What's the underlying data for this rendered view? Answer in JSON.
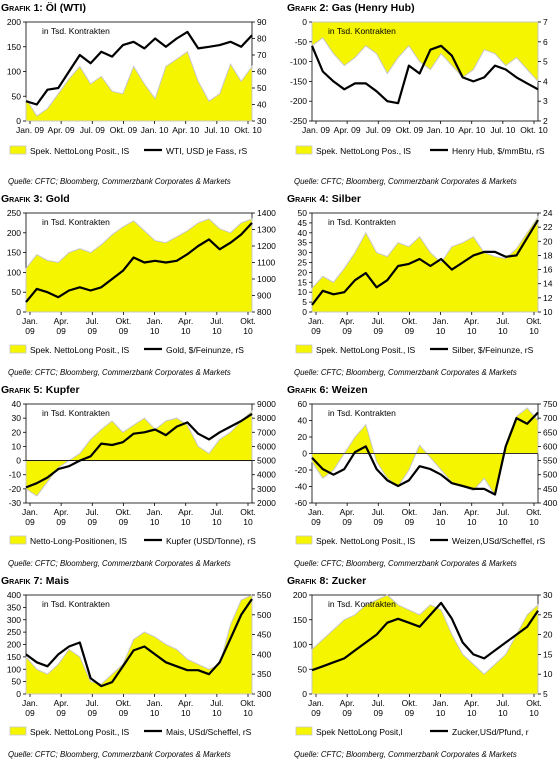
{
  "source_line": "Quelle: CFTC; Bloomberg, Commerzbank Corporates & Markets",
  "charts": [
    {
      "title_prefix": "Grafik 1: ",
      "title": "Öl (WTI)",
      "annotation": "in Tsd. Kontrakten",
      "legend": [
        "Spek. NettoLong Posit., lS",
        "WTI, USD je Fass, rS"
      ],
      "x_ticks": [
        "Jan. 09",
        "Apr. 09",
        "Jul. 09",
        "Okt. 09",
        "Jan. 10",
        "Apr. 10",
        "Jul. 10",
        "Okt. 10"
      ],
      "x_tick_lines": 1,
      "left_axis": {
        "min": 0,
        "max": 200,
        "ticks": [
          0,
          50,
          100,
          150,
          200
        ]
      },
      "right_axis": {
        "min": 30,
        "max": 90,
        "ticks": [
          30,
          40,
          50,
          60,
          70,
          80,
          90
        ]
      }
    },
    {
      "title_prefix": "Grafik 2: ",
      "title": "Gas (Henry Hub)",
      "annotation": "in Tsd. Kontrakten",
      "legend": [
        "Spek. NettoLong Pos., lS",
        "Henry Hub, $/mmBtu, rS"
      ],
      "x_ticks": [
        "Jan. 09",
        "Apr. 09",
        "Jul. 09",
        "Okt. 09",
        "Jan. 10",
        "Apr. 10",
        "Jul. 10",
        "Okt. 10"
      ],
      "x_tick_lines": 1,
      "left_axis": {
        "min": -250,
        "max": 0,
        "ticks": [
          -250,
          -200,
          -150,
          -100,
          -50,
          0
        ]
      },
      "right_axis": {
        "min": 2,
        "max": 7,
        "ticks": [
          2,
          3,
          4,
          5,
          6,
          7
        ]
      }
    },
    {
      "title_prefix": "Grafik 3: ",
      "title": "Gold",
      "annotation": "in Tsd. Kontrakten",
      "legend": [
        "Spek. NettoLong Posit., lS",
        "Gold, $/Feinunze, rS"
      ],
      "x_ticks": [
        "Jan. 09",
        "Apr. 09",
        "Jul. 09",
        "Okt. 09",
        "Jan. 10",
        "Apr. 10",
        "Jul. 10",
        "Okt. 10"
      ],
      "x_tick_lines": 2,
      "left_axis": {
        "min": 0,
        "max": 250,
        "ticks": [
          0,
          50,
          100,
          150,
          200,
          250
        ]
      },
      "right_axis": {
        "min": 800,
        "max": 1400,
        "ticks": [
          800,
          900,
          1000,
          1100,
          1200,
          1300,
          1400
        ]
      }
    },
    {
      "title_prefix": "Grafik 4: ",
      "title": "Silber",
      "annotation": "in Tsd. Kontrakten",
      "legend": [
        "Spek. NettoLong Posit., lS",
        "Silber, $/Feinunze, rS"
      ],
      "x_ticks": [
        "Jan. 09",
        "Apr. 09",
        "Jul. 09",
        "Okt. 09",
        "Jan. 10",
        "Apr. 10",
        "Jul. 10",
        "Okt. 10"
      ],
      "x_tick_lines": 2,
      "left_axis": {
        "min": 0,
        "max": 50,
        "ticks": [
          0,
          5,
          10,
          15,
          20,
          25,
          30,
          35,
          40,
          45,
          50
        ]
      },
      "right_axis": {
        "min": 10,
        "max": 24,
        "ticks": [
          10,
          12,
          14,
          16,
          18,
          20,
          22,
          24
        ]
      }
    },
    {
      "title_prefix": "Grafik 5: ",
      "title": "Kupfer",
      "annotation": "in Tsd. Kontrakten",
      "legend": [
        "Netto-Long-Positionen, lS",
        "Kupfer (USD/Tonne), rS"
      ],
      "x_ticks": [
        "Jan. 09",
        "Apr. 09",
        "Jul. 09",
        "Okt. 09",
        "Jan. 10",
        "Apr. 10",
        "Jul. 10",
        "Okt. 10"
      ],
      "x_tick_lines": 2,
      "left_axis": {
        "min": -30,
        "max": 40,
        "ticks": [
          -30,
          -20,
          -10,
          0,
          10,
          20,
          30,
          40
        ]
      },
      "right_axis": {
        "min": 2000,
        "max": 9000,
        "ticks": [
          2000,
          3000,
          4000,
          5000,
          6000,
          7000,
          8000,
          9000
        ]
      }
    },
    {
      "title_prefix": "Grafik 6: ",
      "title": "Weizen",
      "annotation": "in Tsd. Kontrakten",
      "legend": [
        "Spek. NettoLong Posit., lS",
        "Weizen,USd/Scheffel, rS"
      ],
      "x_ticks": [
        "Jan. 09",
        "Apr. 09",
        "Jul. 09",
        "Okt. 09",
        "Jan. 10",
        "Apr. 10",
        "Jul. 10",
        "Okt. 10"
      ],
      "x_tick_lines": 2,
      "left_axis": {
        "min": -60,
        "max": 60,
        "ticks": [
          -60,
          -40,
          -20,
          0,
          20,
          40,
          60
        ]
      },
      "right_axis": {
        "min": 400,
        "max": 750,
        "ticks": [
          400,
          450,
          500,
          550,
          600,
          650,
          700,
          750
        ]
      }
    },
    {
      "title_prefix": "Grafik 7: ",
      "title": "Mais",
      "annotation": "in Tsd. Kontrakten",
      "legend": [
        "Spek. NettoLong Posit., lS",
        "Mais, USd/Scheffel, rS"
      ],
      "x_ticks": [
        "Jan. 09",
        "Apr. 09",
        "Jul. 09",
        "Okt. 09",
        "Jan. 10",
        "Apr. 10",
        "Jul. 10",
        "Okt. 10"
      ],
      "x_tick_lines": 2,
      "left_axis": {
        "min": 0,
        "max": 400,
        "ticks": [
          0,
          50,
          100,
          150,
          200,
          250,
          300,
          350,
          400
        ]
      },
      "right_axis": {
        "min": 300,
        "max": 550,
        "ticks": [
          300,
          350,
          400,
          450,
          500,
          550
        ]
      }
    },
    {
      "title_prefix": "Grafik 8: ",
      "title": "Zucker",
      "annotation": "in Tsd. Kontrakten",
      "legend": [
        "Spek NettoLong Posit,l",
        "Zucker,USd/Pfund, r"
      ],
      "x_ticks": [
        "Jan. 09",
        "Apr. 09",
        "Jul. 09",
        "Okt. 09",
        "Jan. 10",
        "Apr. 10",
        "Jul. 10",
        "Okt. 10"
      ],
      "x_tick_lines": 2,
      "left_axis": {
        "min": 0,
        "max": 200,
        "ticks": [
          0,
          50,
          100,
          150,
          200
        ]
      },
      "right_axis": {
        "min": 5,
        "max": 30,
        "ticks": [
          5,
          10,
          15,
          20,
          25,
          30
        ]
      }
    }
  ],
  "chart_data": [
    {
      "type": "area+line",
      "title": "Öl (WTI)",
      "x": [
        "2009-01",
        "2009-02",
        "2009-03",
        "2009-04",
        "2009-05",
        "2009-06",
        "2009-07",
        "2009-08",
        "2009-09",
        "2009-10",
        "2009-11",
        "2009-12",
        "2010-01",
        "2010-02",
        "2010-03",
        "2010-04",
        "2010-05",
        "2010-06",
        "2010-07",
        "2010-08",
        "2010-09",
        "2010-10"
      ],
      "series": [
        {
          "name": "Spek. NettoLong Posit., lS",
          "axis": "left",
          "values": [
            45,
            10,
            25,
            55,
            85,
            110,
            75,
            90,
            60,
            55,
            110,
            75,
            45,
            110,
            125,
            140,
            80,
            40,
            55,
            115,
            80,
            110
          ]
        },
        {
          "name": "WTI, USD je Fass, rS",
          "axis": "right",
          "values": [
            42,
            40,
            49,
            50,
            60,
            70,
            65,
            72,
            69,
            76,
            78,
            74,
            80,
            75,
            80,
            84,
            74,
            75,
            76,
            78,
            75,
            82
          ]
        }
      ]
    },
    {
      "type": "area+line",
      "title": "Gas (Henry Hub)",
      "x": [
        "2009-01",
        "2009-02",
        "2009-03",
        "2009-04",
        "2009-05",
        "2009-06",
        "2009-07",
        "2009-08",
        "2009-09",
        "2009-10",
        "2009-11",
        "2009-12",
        "2010-01",
        "2010-02",
        "2010-03",
        "2010-04",
        "2010-05",
        "2010-06",
        "2010-07",
        "2010-08",
        "2010-09",
        "2010-10"
      ],
      "series": [
        {
          "name": "Spek. NettoLong Pos., lS",
          "axis": "left",
          "values": [
            -60,
            -40,
            -80,
            -110,
            -90,
            -60,
            -80,
            -130,
            -90,
            -60,
            -100,
            -120,
            -80,
            -110,
            -140,
            -120,
            -70,
            -80,
            -110,
            -90,
            -120,
            -150
          ]
        },
        {
          "name": "Henry Hub, $/mmBtu, rS",
          "axis": "right",
          "values": [
            5.8,
            4.5,
            4.0,
            3.6,
            3.9,
            3.9,
            3.5,
            3.0,
            2.9,
            4.8,
            4.4,
            5.6,
            5.8,
            5.3,
            4.2,
            4.0,
            4.2,
            4.8,
            4.6,
            4.2,
            3.9,
            3.6
          ]
        }
      ]
    },
    {
      "type": "area+line",
      "title": "Gold",
      "x": [
        "2009-01",
        "2009-02",
        "2009-03",
        "2009-04",
        "2009-05",
        "2009-06",
        "2009-07",
        "2009-08",
        "2009-09",
        "2009-10",
        "2009-11",
        "2009-12",
        "2010-01",
        "2010-02",
        "2010-03",
        "2010-04",
        "2010-05",
        "2010-06",
        "2010-07",
        "2010-08",
        "2010-09",
        "2010-10"
      ],
      "series": [
        {
          "name": "Spek. NettoLong Posit., lS",
          "axis": "left",
          "values": [
            110,
            145,
            130,
            125,
            150,
            160,
            150,
            170,
            195,
            215,
            230,
            205,
            180,
            175,
            190,
            205,
            225,
            235,
            210,
            200,
            225,
            235
          ]
        },
        {
          "name": "Gold, $/Feinunze, rS",
          "axis": "right",
          "values": [
            860,
            940,
            920,
            890,
            930,
            950,
            930,
            950,
            1000,
            1050,
            1130,
            1100,
            1110,
            1100,
            1110,
            1150,
            1200,
            1240,
            1180,
            1220,
            1270,
            1340
          ]
        }
      ]
    },
    {
      "type": "area+line",
      "title": "Silber",
      "x": [
        "2009-01",
        "2009-02",
        "2009-03",
        "2009-04",
        "2009-05",
        "2009-06",
        "2009-07",
        "2009-08",
        "2009-09",
        "2009-10",
        "2009-11",
        "2009-12",
        "2010-01",
        "2010-02",
        "2010-03",
        "2010-04",
        "2010-05",
        "2010-06",
        "2010-07",
        "2010-08",
        "2010-09",
        "2010-10"
      ],
      "series": [
        {
          "name": "Spek. NettoLong Posit., lS",
          "axis": "left",
          "values": [
            12,
            18,
            15,
            22,
            30,
            40,
            30,
            28,
            35,
            33,
            38,
            30,
            25,
            33,
            35,
            38,
            30,
            28,
            27,
            32,
            40,
            48
          ]
        },
        {
          "name": "Silber, $/Feinunze, rS",
          "axis": "right",
          "values": [
            11,
            13,
            12.5,
            12.8,
            14.5,
            15.5,
            13.5,
            14.5,
            16.5,
            16.8,
            17.5,
            16.5,
            17.5,
            16,
            17,
            18,
            18.5,
            18.5,
            17.8,
            18,
            20.5,
            23
          ]
        }
      ]
    },
    {
      "type": "area+line",
      "title": "Kupfer",
      "x": [
        "2009-01",
        "2009-02",
        "2009-03",
        "2009-04",
        "2009-05",
        "2009-06",
        "2009-07",
        "2009-08",
        "2009-09",
        "2009-10",
        "2009-11",
        "2009-12",
        "2010-01",
        "2010-02",
        "2010-03",
        "2010-04",
        "2010-05",
        "2010-06",
        "2010-07",
        "2010-08",
        "2010-09",
        "2010-10"
      ],
      "series": [
        {
          "name": "Netto-Long-Positionen, lS",
          "axis": "left",
          "values": [
            -20,
            -25,
            -15,
            -5,
            0,
            5,
            15,
            22,
            28,
            20,
            25,
            30,
            22,
            28,
            30,
            25,
            10,
            5,
            15,
            20,
            28,
            35
          ]
        },
        {
          "name": "Kupfer (USD/Tonne), rS",
          "axis": "right",
          "values": [
            3100,
            3400,
            3800,
            4400,
            4600,
            5000,
            5300,
            6200,
            6100,
            6300,
            6900,
            7000,
            7200,
            6800,
            7400,
            7700,
            6900,
            6500,
            7000,
            7400,
            7800,
            8300
          ]
        }
      ]
    },
    {
      "type": "area+line",
      "title": "Weizen",
      "x": [
        "2009-01",
        "2009-02",
        "2009-03",
        "2009-04",
        "2009-05",
        "2009-06",
        "2009-07",
        "2009-08",
        "2009-09",
        "2009-10",
        "2009-11",
        "2009-12",
        "2010-01",
        "2010-02",
        "2010-03",
        "2010-04",
        "2010-05",
        "2010-06",
        "2010-07",
        "2010-08",
        "2010-09",
        "2010-10"
      ],
      "series": [
        {
          "name": "Spek. NettoLong Posit., lS",
          "axis": "left",
          "values": [
            -10,
            -30,
            -20,
            0,
            20,
            35,
            -10,
            -30,
            -40,
            -20,
            10,
            -5,
            -20,
            -35,
            -40,
            -45,
            -30,
            -50,
            10,
            45,
            55,
            40
          ]
        },
        {
          "name": "Weizen,USd/Scheffel, rS",
          "axis": "right",
          "values": [
            560,
            520,
            500,
            520,
            580,
            600,
            520,
            480,
            460,
            480,
            530,
            520,
            500,
            470,
            460,
            450,
            450,
            430,
            600,
            700,
            680,
            720
          ]
        }
      ]
    },
    {
      "type": "area+line",
      "title": "Mais",
      "x": [
        "2009-01",
        "2009-02",
        "2009-03",
        "2009-04",
        "2009-05",
        "2009-06",
        "2009-07",
        "2009-08",
        "2009-09",
        "2009-10",
        "2009-11",
        "2009-12",
        "2010-01",
        "2010-02",
        "2010-03",
        "2010-04",
        "2010-05",
        "2010-06",
        "2010-07",
        "2010-08",
        "2010-09",
        "2010-10"
      ],
      "series": [
        {
          "name": "Spek. NettoLong Posit., lS",
          "axis": "left",
          "values": [
            150,
            100,
            80,
            120,
            180,
            150,
            50,
            40,
            80,
            120,
            220,
            250,
            230,
            200,
            180,
            140,
            120,
            100,
            120,
            280,
            380,
            400
          ]
        },
        {
          "name": "Mais, USd/Scheffel, rS",
          "axis": "right",
          "values": [
            400,
            380,
            370,
            400,
            420,
            430,
            340,
            320,
            330,
            370,
            410,
            420,
            400,
            380,
            370,
            360,
            360,
            350,
            380,
            440,
            500,
            540
          ]
        }
      ]
    },
    {
      "type": "area+line",
      "title": "Zucker",
      "x": [
        "2009-01",
        "2009-02",
        "2009-03",
        "2009-04",
        "2009-05",
        "2009-06",
        "2009-07",
        "2009-08",
        "2009-09",
        "2009-10",
        "2009-11",
        "2009-12",
        "2010-01",
        "2010-02",
        "2010-03",
        "2010-04",
        "2010-05",
        "2010-06",
        "2010-07",
        "2010-08",
        "2010-09",
        "2010-10"
      ],
      "series": [
        {
          "name": "Spek NettoLong Posit,l",
          "axis": "left",
          "values": [
            90,
            110,
            130,
            150,
            160,
            180,
            190,
            200,
            180,
            170,
            160,
            180,
            170,
            120,
            80,
            60,
            40,
            60,
            80,
            120,
            160,
            180
          ]
        },
        {
          "name": "Zucker,USd/Pfund, r",
          "axis": "right",
          "values": [
            11,
            12,
            13,
            14,
            16,
            18,
            20,
            23,
            24,
            23,
            22,
            25,
            28,
            24,
            18,
            15,
            14,
            16,
            18,
            20,
            22,
            26
          ]
        }
      ]
    }
  ]
}
